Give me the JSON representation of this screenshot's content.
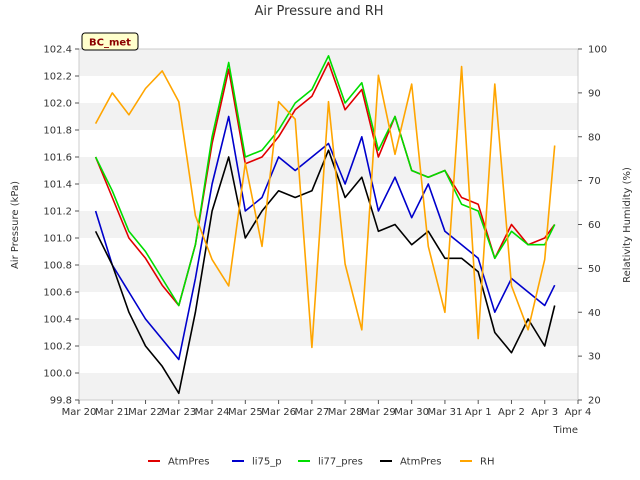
{
  "chart_data": {
    "type": "line",
    "title": "Air Pressure and RH",
    "xlabel": "Time",
    "ylabel": "Air Pressure (kPa)",
    "y2label": "Relativity Humidity (%)",
    "site_badge": "BC_met",
    "x_ticks": [
      "Mar 20",
      "Mar 21",
      "Mar 22",
      "Mar 23",
      "Mar 24",
      "Mar 25",
      "Mar 26",
      "Mar 27",
      "Mar 28",
      "Mar 29",
      "Mar 30",
      "Mar 31",
      "Apr 1",
      "Apr 2",
      "Apr 3",
      "Apr 4"
    ],
    "y_ticks": [
      "99.8",
      "100.0",
      "100.2",
      "100.4",
      "100.6",
      "100.8",
      "101.0",
      "101.2",
      "101.4",
      "101.6",
      "101.8",
      "102.0",
      "102.2",
      "102.4"
    ],
    "y2_ticks": [
      "20",
      "30",
      "40",
      "50",
      "60",
      "70",
      "80",
      "90",
      "100"
    ],
    "xlim_days": [
      0,
      15
    ],
    "ylim": [
      99.8,
      102.4
    ],
    "y2lim": [
      20,
      100
    ],
    "grid": "horizontal bands",
    "legend_position": "bottom",
    "x": [
      0.5,
      1.0,
      1.5,
      2.0,
      2.5,
      3.0,
      3.5,
      4.0,
      4.5,
      5.0,
      5.5,
      6.0,
      6.5,
      7.0,
      7.5,
      8.0,
      8.5,
      9.0,
      9.5,
      10.0,
      10.5,
      11.0,
      11.5,
      12.0,
      12.5,
      13.0,
      13.5,
      14.0,
      14.3
    ],
    "series": [
      {
        "name": "AtmPres",
        "color": "#e00000",
        "axis": "left",
        "values": [
          101.6,
          101.3,
          101.0,
          100.85,
          100.65,
          100.5,
          100.95,
          101.7,
          102.25,
          101.55,
          101.6,
          101.75,
          101.95,
          102.05,
          102.3,
          101.95,
          102.1,
          101.6,
          101.9,
          101.5,
          101.45,
          101.5,
          101.3,
          101.25,
          100.85,
          101.1,
          100.95,
          101.0,
          101.1
        ]
      },
      {
        "name": "li75_p",
        "color": "#0000cc",
        "axis": "left",
        "values": [
          101.2,
          100.8,
          100.6,
          100.4,
          100.25,
          100.1,
          100.7,
          101.4,
          101.9,
          101.2,
          101.3,
          101.6,
          101.5,
          101.6,
          101.7,
          101.4,
          101.75,
          101.2,
          101.45,
          101.15,
          101.4,
          101.05,
          100.95,
          100.85,
          100.45,
          100.7,
          100.6,
          100.5,
          100.65
        ]
      },
      {
        "name": "li77_pres",
        "color": "#00dd00",
        "axis": "left",
        "values": [
          101.6,
          101.35,
          101.05,
          100.9,
          100.7,
          100.5,
          100.95,
          101.75,
          102.3,
          101.6,
          101.65,
          101.8,
          102.0,
          102.1,
          102.35,
          102.0,
          102.15,
          101.65,
          101.9,
          101.5,
          101.45,
          101.5,
          101.25,
          101.2,
          100.85,
          101.05,
          100.95,
          100.95,
          101.1
        ]
      },
      {
        "name": "AtmPres",
        "color": "#000000",
        "axis": "left",
        "values": [
          101.05,
          100.8,
          100.45,
          100.2,
          100.05,
          99.85,
          100.45,
          101.2,
          101.6,
          101.0,
          101.2,
          101.35,
          101.3,
          101.35,
          101.65,
          101.3,
          101.45,
          101.05,
          101.1,
          100.95,
          101.05,
          100.85,
          100.85,
          100.75,
          100.3,
          100.15,
          100.4,
          100.2,
          100.5
        ]
      },
      {
        "name": "RH",
        "color": "#ffa500",
        "axis": "right",
        "values": [
          83,
          90,
          85,
          91,
          95,
          88,
          62,
          52,
          46,
          74,
          55,
          88,
          84,
          32,
          88,
          51,
          36,
          94,
          76,
          92,
          55,
          40,
          96,
          34,
          92,
          46,
          36,
          52,
          78
        ]
      }
    ]
  }
}
